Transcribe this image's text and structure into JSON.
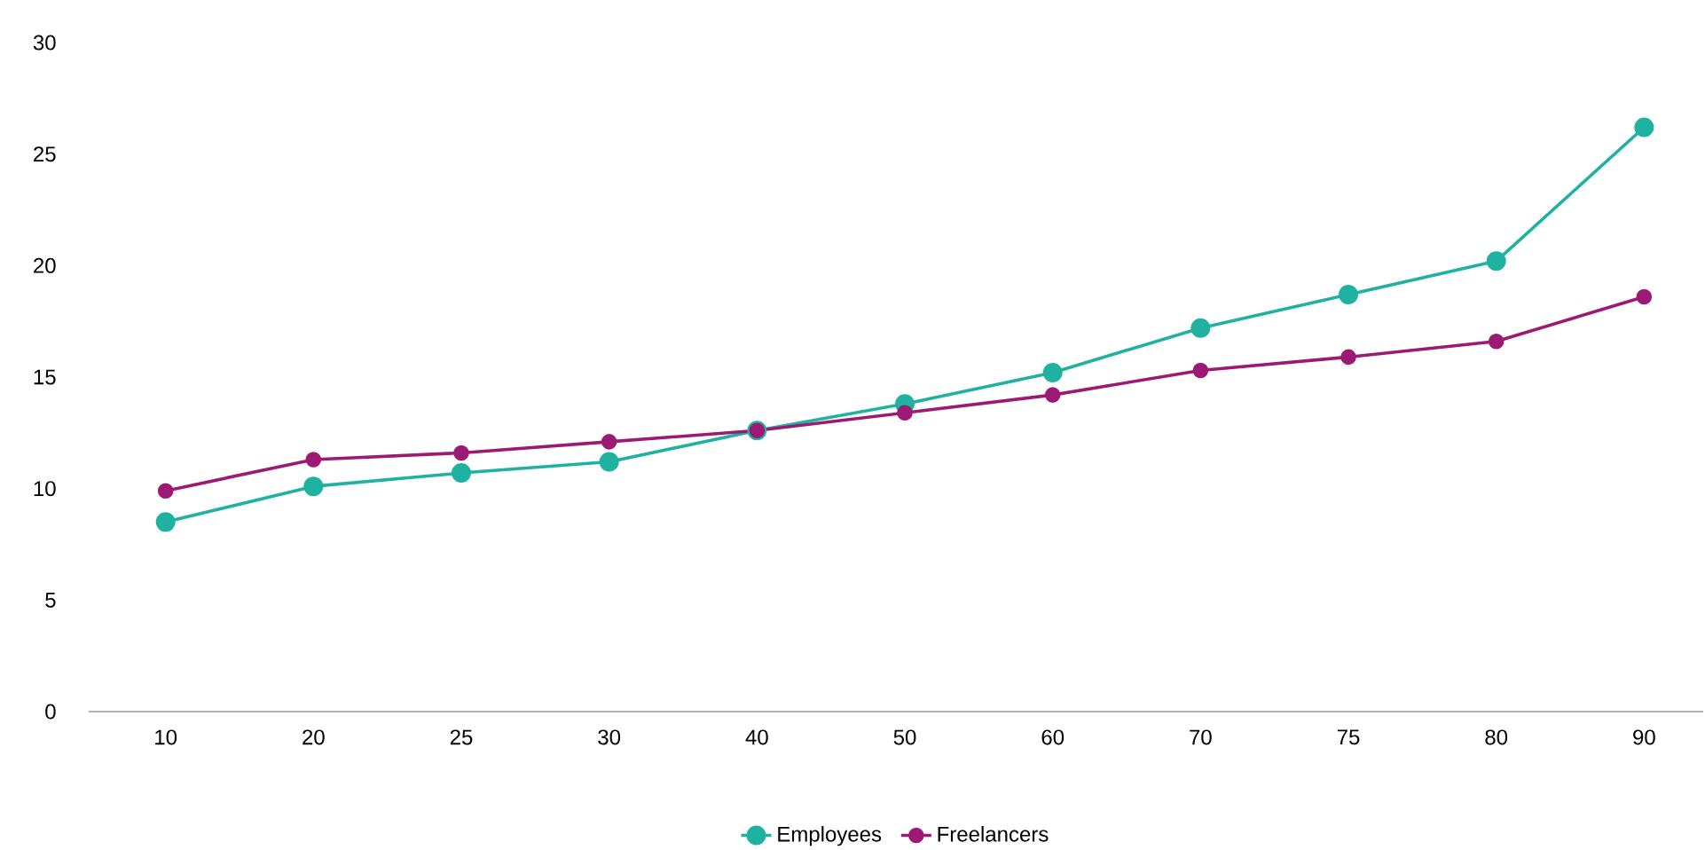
{
  "chart_data": {
    "type": "line",
    "categories": [
      "10",
      "20",
      "25",
      "30",
      "40",
      "50",
      "60",
      "70",
      "75",
      "80",
      "90"
    ],
    "series": [
      {
        "name": "Employees",
        "color": "#20b2a0",
        "values": [
          8.5,
          10.1,
          10.7,
          11.2,
          12.6,
          13.8,
          15.2,
          17.2,
          18.7,
          20.2,
          26.2
        ]
      },
      {
        "name": "Freelancers",
        "color": "#9c1a74",
        "values": [
          9.9,
          11.3,
          11.6,
          12.1,
          12.6,
          13.4,
          14.2,
          15.3,
          15.9,
          16.6,
          18.6
        ]
      }
    ],
    "ylim": [
      0,
      30
    ],
    "yticks": [
      0,
      5,
      10,
      15,
      20,
      25,
      30
    ],
    "legend": "bottom",
    "marker": "circle"
  }
}
